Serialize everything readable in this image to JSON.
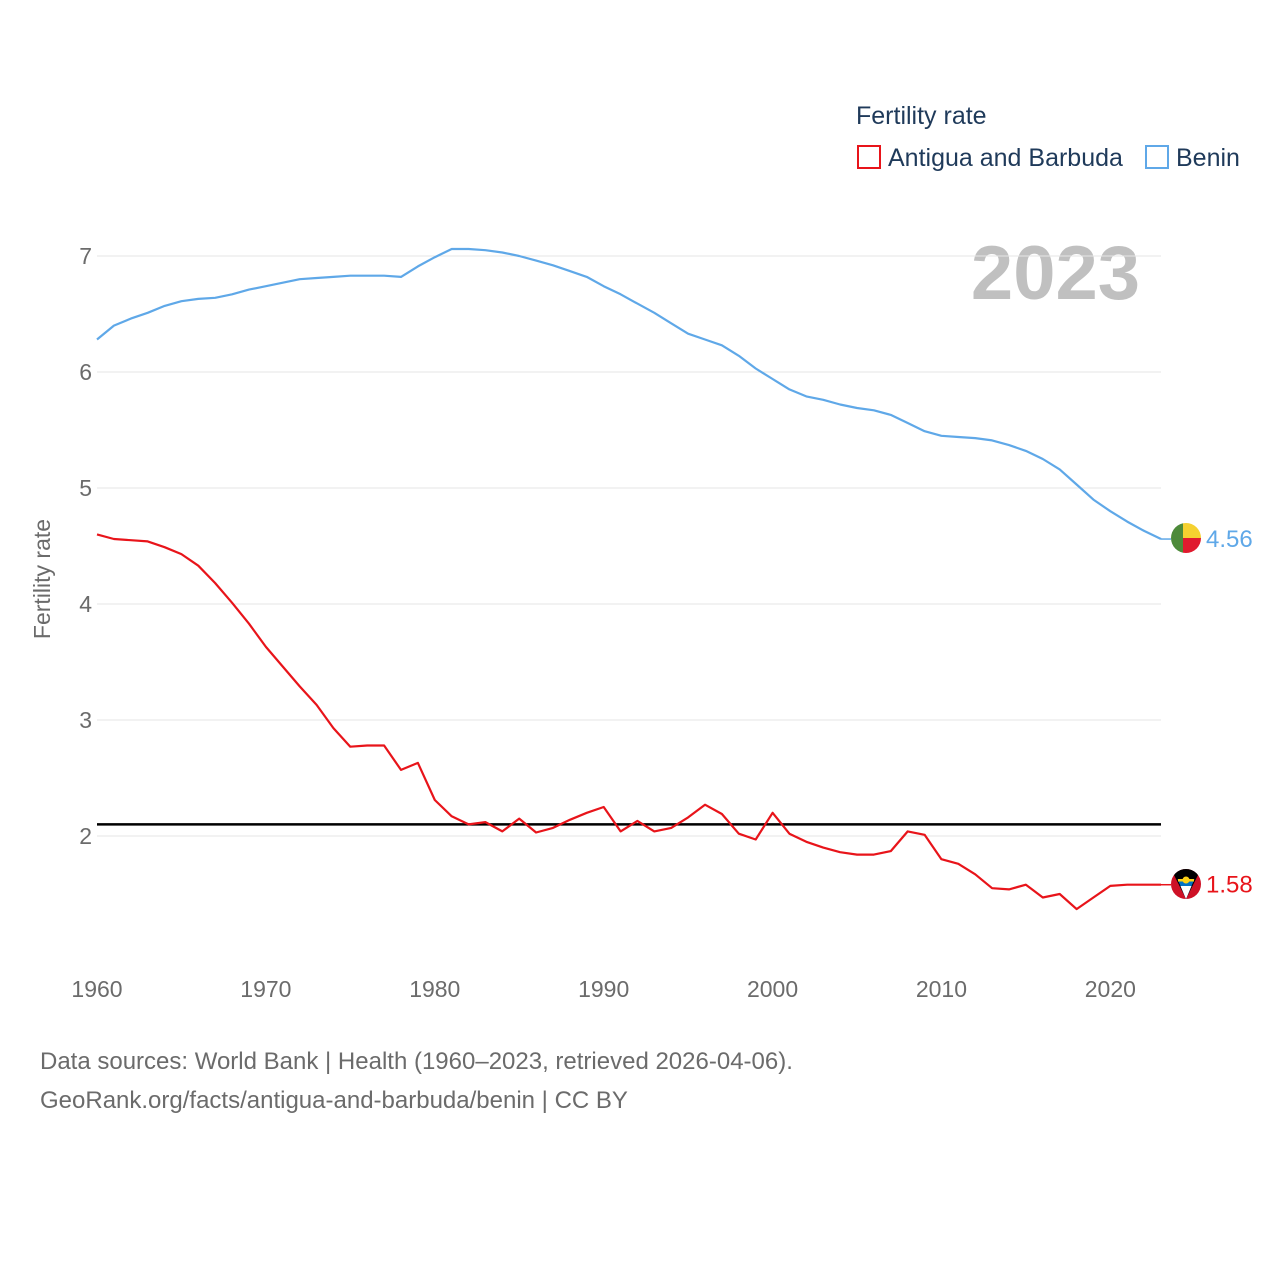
{
  "legend": {
    "title": "Fertility rate",
    "items": [
      {
        "name": "Antigua and Barbuda",
        "color": "#e8141a"
      },
      {
        "name": "Benin",
        "color": "#5fa8e8"
      }
    ]
  },
  "year_label": "2023",
  "source": {
    "line1": "Data sources: World Bank | Health (1960–2023, retrieved 2026-04-06).",
    "line2": "GeoRank.org/facts/antigua-and-barbuda/benin | CC BY"
  },
  "chart_data": {
    "type": "line",
    "title": "Fertility rate",
    "xlabel": "",
    "ylabel": "Fertility rate",
    "xlim": [
      1960,
      2023
    ],
    "ylim": [
      1.0,
      7.2
    ],
    "x_ticks": [
      1960,
      1970,
      1980,
      1990,
      2000,
      2010,
      2020
    ],
    "y_ticks": [
      2,
      3,
      4,
      5,
      6,
      7
    ],
    "grid": true,
    "legend_position": "top-right",
    "reference_line": {
      "y": 2.1,
      "color": "#000000"
    },
    "x": [
      1960,
      1961,
      1962,
      1963,
      1964,
      1965,
      1966,
      1967,
      1968,
      1969,
      1970,
      1971,
      1972,
      1973,
      1974,
      1975,
      1976,
      1977,
      1978,
      1979,
      1980,
      1981,
      1982,
      1983,
      1984,
      1985,
      1986,
      1987,
      1988,
      1989,
      1990,
      1991,
      1992,
      1993,
      1994,
      1995,
      1996,
      1997,
      1998,
      1999,
      2000,
      2001,
      2002,
      2003,
      2004,
      2005,
      2006,
      2007,
      2008,
      2009,
      2010,
      2011,
      2012,
      2013,
      2014,
      2015,
      2016,
      2017,
      2018,
      2019,
      2020,
      2021,
      2022,
      2023
    ],
    "series": [
      {
        "name": "Antigua and Barbuda",
        "color": "#e8141a",
        "end_label": "1.58",
        "values": [
          4.6,
          4.56,
          4.55,
          4.54,
          4.49,
          4.43,
          4.33,
          4.18,
          4.01,
          3.83,
          3.63,
          3.46,
          3.29,
          3.13,
          2.93,
          2.77,
          2.78,
          2.78,
          2.57,
          2.63,
          2.31,
          2.17,
          2.1,
          2.12,
          2.04,
          2.15,
          2.03,
          2.07,
          2.14,
          2.2,
          2.25,
          2.04,
          2.13,
          2.04,
          2.07,
          2.16,
          2.27,
          2.19,
          2.02,
          1.97,
          2.2,
          2.02,
          1.95,
          1.9,
          1.86,
          1.84,
          1.84,
          1.87,
          2.04,
          2.01,
          1.8,
          1.76,
          1.67,
          1.55,
          1.54,
          1.58,
          1.47,
          1.5,
          1.37,
          1.47,
          1.57,
          1.58,
          1.58,
          1.58
        ]
      },
      {
        "name": "Benin",
        "color": "#5fa8e8",
        "end_label": "4.56",
        "values": [
          6.28,
          6.4,
          6.46,
          6.51,
          6.57,
          6.61,
          6.63,
          6.64,
          6.67,
          6.71,
          6.74,
          6.77,
          6.8,
          6.81,
          6.82,
          6.83,
          6.83,
          6.83,
          6.82,
          6.91,
          6.99,
          7.06,
          7.06,
          7.05,
          7.03,
          7.0,
          6.96,
          6.92,
          6.87,
          6.82,
          6.74,
          6.67,
          6.59,
          6.51,
          6.42,
          6.33,
          6.28,
          6.23,
          6.14,
          6.03,
          5.94,
          5.85,
          5.79,
          5.76,
          5.72,
          5.69,
          5.67,
          5.63,
          5.56,
          5.49,
          5.45,
          5.44,
          5.43,
          5.41,
          5.37,
          5.32,
          5.25,
          5.16,
          5.03,
          4.9,
          4.8,
          4.71,
          4.63,
          4.56
        ]
      }
    ]
  }
}
